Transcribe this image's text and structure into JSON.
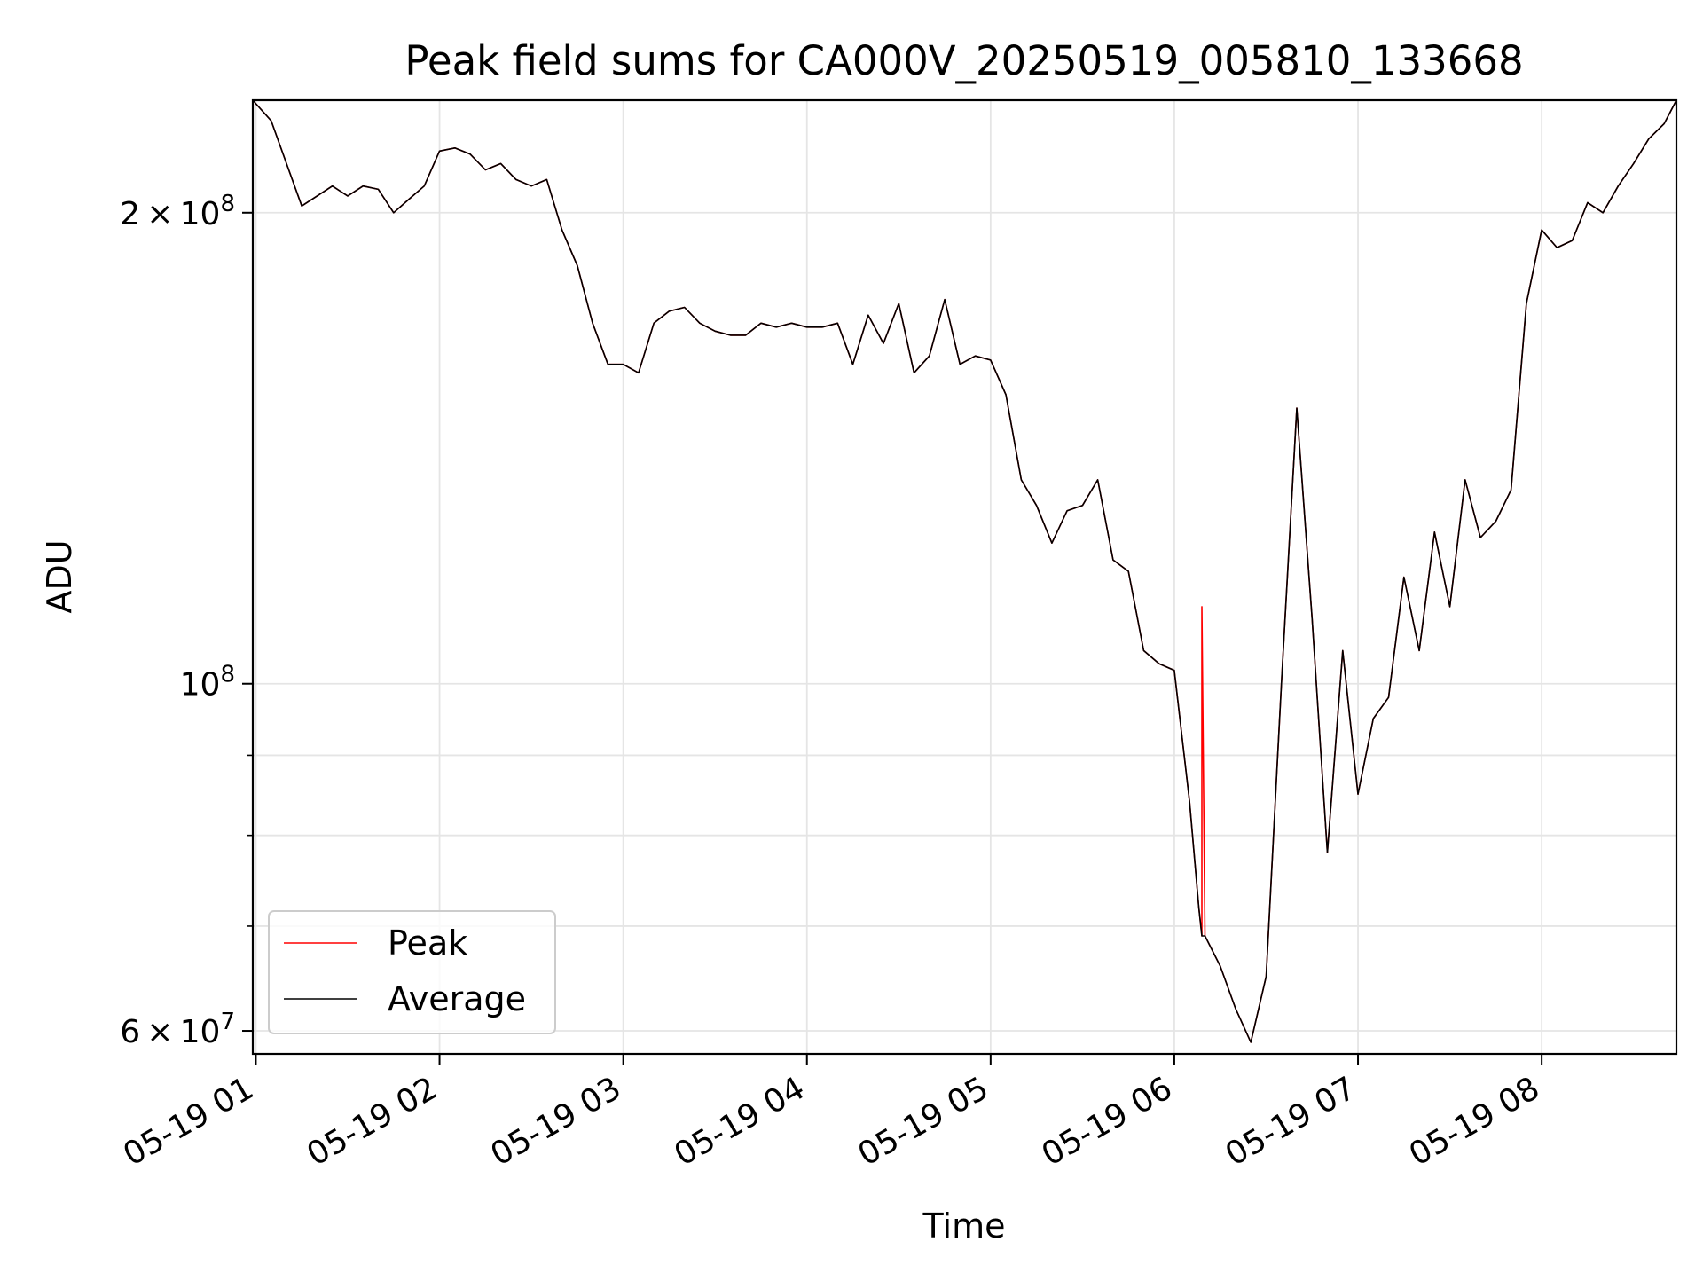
{
  "chart_data": {
    "type": "line",
    "title": "Peak field sums for CA000V_20250519_005810_133668",
    "xlabel": "Time",
    "ylabel": "ADU",
    "xscale": "time",
    "yscale": "log",
    "xlim": [
      "2025-05-19 00:59",
      "2025-05-19 08:44"
    ],
    "ylim": [
      58000000,
      236000000
    ],
    "grid": true,
    "legend_position": "lower-left",
    "x_ticks": [
      {
        "value": "2025-05-19 01:00",
        "label": "05-19 01"
      },
      {
        "value": "2025-05-19 02:00",
        "label": "05-19 02"
      },
      {
        "value": "2025-05-19 03:00",
        "label": "05-19 03"
      },
      {
        "value": "2025-05-19 04:00",
        "label": "05-19 04"
      },
      {
        "value": "2025-05-19 05:00",
        "label": "05-19 05"
      },
      {
        "value": "2025-05-19 06:00",
        "label": "05-19 06"
      },
      {
        "value": "2025-05-19 07:00",
        "label": "05-19 07"
      },
      {
        "value": "2025-05-19 08:00",
        "label": "05-19 08"
      }
    ],
    "y_major_ticks": [
      {
        "value": 60000000,
        "mantissa": "6",
        "times": "×",
        "base": "10",
        "exponent": "7"
      },
      {
        "value": 100000000,
        "mantissa": "",
        "times": "",
        "base": "10",
        "exponent": "8"
      },
      {
        "value": 200000000,
        "mantissa": "2",
        "times": "×",
        "base": "10",
        "exponent": "8"
      }
    ],
    "y_minor_ticks": [
      70000000,
      80000000,
      90000000
    ],
    "series": [
      {
        "name": "Peak",
        "color": "#ff0000",
        "x": [
          "00:59",
          "01:05",
          "01:10",
          "01:15",
          "01:20",
          "01:25",
          "01:30",
          "01:35",
          "01:40",
          "01:45",
          "01:50",
          "01:55",
          "02:00",
          "02:05",
          "02:10",
          "02:15",
          "02:20",
          "02:25",
          "02:30",
          "02:35",
          "02:40",
          "02:45",
          "02:50",
          "02:55",
          "03:00",
          "03:05",
          "03:10",
          "03:15",
          "03:20",
          "03:25",
          "03:30",
          "03:35",
          "03:40",
          "03:45",
          "03:50",
          "03:55",
          "04:00",
          "04:05",
          "04:10",
          "04:15",
          "04:20",
          "04:25",
          "04:30",
          "04:35",
          "04:40",
          "04:45",
          "04:50",
          "04:55",
          "05:00",
          "05:05",
          "05:10",
          "05:15",
          "05:20",
          "05:25",
          "05:30",
          "05:35",
          "05:40",
          "05:45",
          "05:50",
          "05:55",
          "06:00",
          "06:05",
          "06:08",
          "06:09",
          "06:09",
          "06:10",
          "06:15",
          "06:20",
          "06:25",
          "06:30",
          "06:35",
          "06:40",
          "06:45",
          "06:50",
          "06:55",
          "07:00",
          "07:05",
          "07:10",
          "07:15",
          "07:20",
          "07:25",
          "07:30",
          "07:35",
          "07:40",
          "07:45",
          "07:50",
          "07:55",
          "08:00",
          "08:05",
          "08:10",
          "08:15",
          "08:20",
          "08:25",
          "08:30",
          "08:35",
          "08:40",
          "08:44"
        ],
        "y": [
          236000000,
          229000000,
          215000000,
          202000000,
          205000000,
          208000000,
          205000000,
          208000000,
          207000000,
          200000000,
          204000000,
          208000000,
          219000000,
          220000000,
          218000000,
          213000000,
          215000000,
          210000000,
          208000000,
          210000000,
          195000000,
          185000000,
          170000000,
          160000000,
          160000000,
          158000000,
          170000000,
          173000000,
          174000000,
          170000000,
          168000000,
          167000000,
          167000000,
          170000000,
          169000000,
          170000000,
          169000000,
          169000000,
          170000000,
          160000000,
          172000000,
          165000000,
          175000000,
          158000000,
          162000000,
          176000000,
          160000000,
          162000000,
          161000000,
          153000000,
          135000000,
          130000000,
          123000000,
          129000000,
          130000000,
          135000000,
          120000000,
          118000000,
          105000000,
          103000000,
          102000000,
          84000000,
          72000000,
          69000000,
          112000000,
          69000000,
          66000000,
          62000000,
          59000000,
          65000000,
          100000000,
          150000000,
          110000000,
          78000000,
          105000000,
          85000000,
          95000000,
          98000000,
          117000000,
          105000000,
          125000000,
          112000000,
          135000000,
          124000000,
          127000000,
          133000000,
          175000000,
          195000000,
          190000000,
          192000000,
          203000000,
          200000000,
          208000000,
          215000000,
          223000000,
          228000000,
          236000000
        ]
      },
      {
        "name": "Average",
        "color": "#000000",
        "x": [
          "00:59",
          "01:05",
          "01:10",
          "01:15",
          "01:20",
          "01:25",
          "01:30",
          "01:35",
          "01:40",
          "01:45",
          "01:50",
          "01:55",
          "02:00",
          "02:05",
          "02:10",
          "02:15",
          "02:20",
          "02:25",
          "02:30",
          "02:35",
          "02:40",
          "02:45",
          "02:50",
          "02:55",
          "03:00",
          "03:05",
          "03:10",
          "03:15",
          "03:20",
          "03:25",
          "03:30",
          "03:35",
          "03:40",
          "03:45",
          "03:50",
          "03:55",
          "04:00",
          "04:05",
          "04:10",
          "04:15",
          "04:20",
          "04:25",
          "04:30",
          "04:35",
          "04:40",
          "04:45",
          "04:50",
          "04:55",
          "05:00",
          "05:05",
          "05:10",
          "05:15",
          "05:20",
          "05:25",
          "05:30",
          "05:35",
          "05:40",
          "05:45",
          "05:50",
          "05:55",
          "06:00",
          "06:05",
          "06:08",
          "06:09",
          "06:09",
          "06:10",
          "06:15",
          "06:20",
          "06:25",
          "06:30",
          "06:35",
          "06:40",
          "06:45",
          "06:50",
          "06:55",
          "07:00",
          "07:05",
          "07:10",
          "07:15",
          "07:20",
          "07:25",
          "07:30",
          "07:35",
          "07:40",
          "07:45",
          "07:50",
          "07:55",
          "08:00",
          "08:05",
          "08:10",
          "08:15",
          "08:20",
          "08:25",
          "08:30",
          "08:35",
          "08:40",
          "08:44"
        ],
        "y": [
          236000000,
          229000000,
          215000000,
          202000000,
          205000000,
          208000000,
          205000000,
          208000000,
          207000000,
          200000000,
          204000000,
          208000000,
          219000000,
          220000000,
          218000000,
          213000000,
          215000000,
          210000000,
          208000000,
          210000000,
          195000000,
          185000000,
          170000000,
          160000000,
          160000000,
          158000000,
          170000000,
          173000000,
          174000000,
          170000000,
          168000000,
          167000000,
          167000000,
          170000000,
          169000000,
          170000000,
          169000000,
          169000000,
          170000000,
          160000000,
          172000000,
          165000000,
          175000000,
          158000000,
          162000000,
          176000000,
          160000000,
          162000000,
          161000000,
          153000000,
          135000000,
          130000000,
          123000000,
          129000000,
          130000000,
          135000000,
          120000000,
          118000000,
          105000000,
          103000000,
          102000000,
          84000000,
          72000000,
          69000000,
          69000000,
          69000000,
          66000000,
          62000000,
          59000000,
          65000000,
          100000000,
          150000000,
          110000000,
          78000000,
          105000000,
          85000000,
          95000000,
          98000000,
          117000000,
          105000000,
          125000000,
          112000000,
          135000000,
          124000000,
          127000000,
          133000000,
          175000000,
          195000000,
          190000000,
          192000000,
          203000000,
          200000000,
          208000000,
          215000000,
          223000000,
          228000000,
          236000000
        ]
      }
    ]
  }
}
